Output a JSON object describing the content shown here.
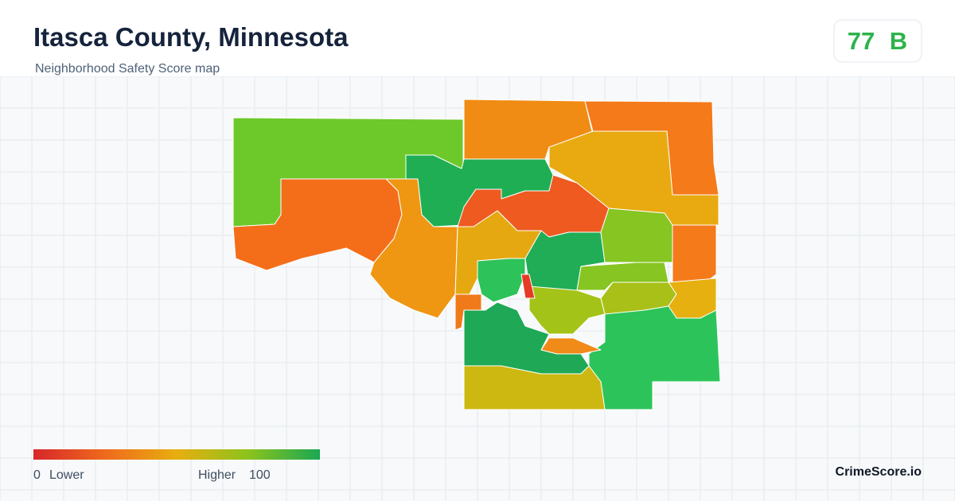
{
  "header": {
    "title": "Itasca County, Minnesota",
    "subtitle": "Neighborhood Safety Score map"
  },
  "score": {
    "value": 77,
    "grade": "B"
  },
  "legend": {
    "min": 0,
    "min_label": "Lower",
    "max_label": "Higher",
    "max": 100
  },
  "brand": "CrimeScore.io"
}
